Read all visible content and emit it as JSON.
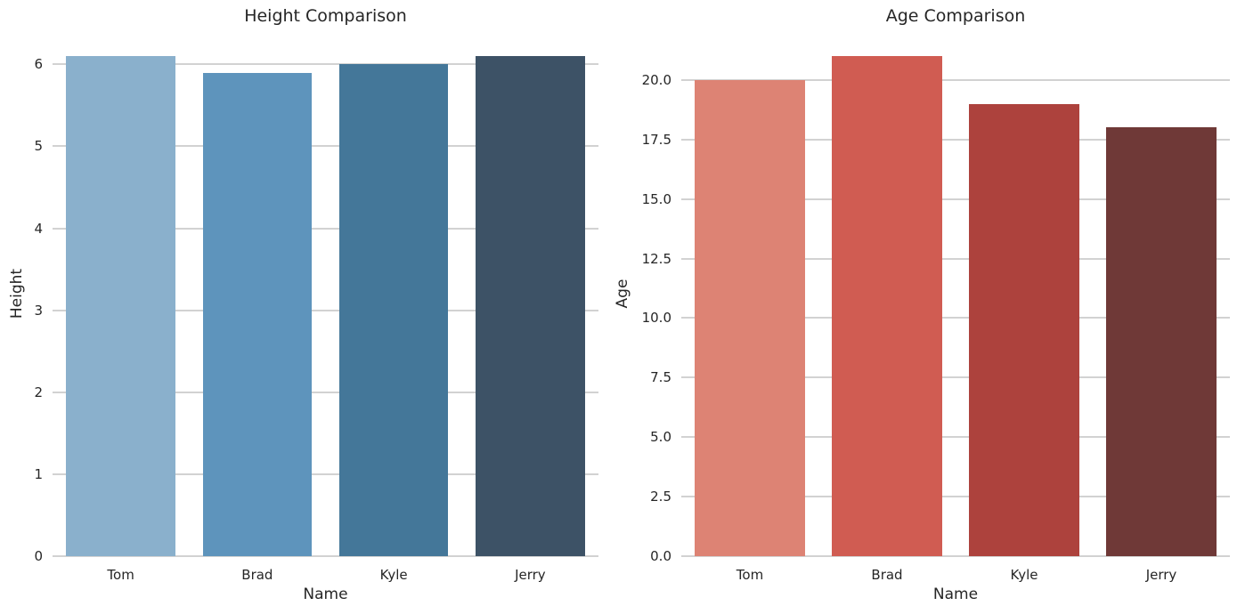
{
  "chart_data": [
    {
      "type": "bar",
      "title": "Height Comparison",
      "xlabel": "Name",
      "ylabel": "Height",
      "categories": [
        "Tom",
        "Brad",
        "Kyle",
        "Jerry"
      ],
      "values": [
        6.1,
        5.9,
        6.0,
        6.1
      ],
      "bar_colors": [
        "#8AB0CC",
        "#5E94BC",
        "#447799",
        "#3D5266"
      ],
      "ylim": [
        0,
        6.405
      ],
      "ytick_values": [
        0,
        1,
        2,
        3,
        4,
        5,
        6
      ],
      "ytick_labels": [
        "0",
        "1",
        "2",
        "3",
        "4",
        "5",
        "6"
      ],
      "grid": true,
      "legend_position": "none"
    },
    {
      "type": "bar",
      "title": "Age Comparison",
      "xlabel": "Name",
      "ylabel": "Age",
      "categories": [
        "Tom",
        "Brad",
        "Kyle",
        "Jerry"
      ],
      "values": [
        20,
        21,
        19,
        18
      ],
      "bar_colors": [
        "#DD8374",
        "#D05C52",
        "#AD423D",
        "#6F3937"
      ],
      "ylim": [
        0,
        22.05
      ],
      "ytick_values": [
        0,
        2.5,
        5,
        7.5,
        10,
        12.5,
        15,
        17.5,
        20
      ],
      "ytick_labels": [
        "0.0",
        "2.5",
        "5.0",
        "7.5",
        "10.0",
        "12.5",
        "15.0",
        "17.5",
        "20.0"
      ],
      "grid": true,
      "legend_position": "none"
    }
  ],
  "style": {
    "background_color": "#ffffff",
    "grid_color": "#d2d2d2",
    "text_color": "#262626"
  }
}
